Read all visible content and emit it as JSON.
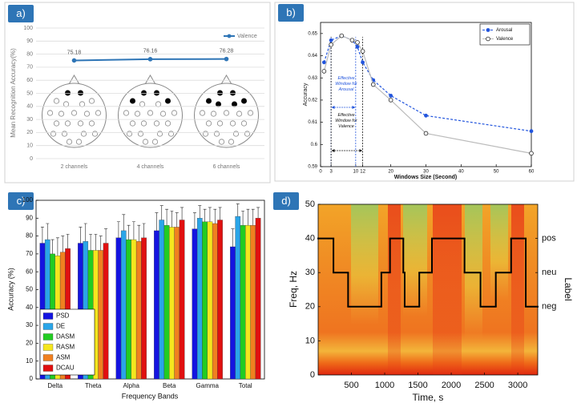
{
  "chart_data": [
    {
      "type": "line",
      "panel_label": "a)",
      "ylabel": "Mean Recognition Accuracy(%)",
      "categories": [
        "2 channels",
        "4 channels",
        "6 channels"
      ],
      "series": [
        {
          "name": "Valence",
          "color": "#2e75b6",
          "values": [
            75.18,
            76.16,
            76.28
          ]
        }
      ],
      "data_labels": true,
      "ylim": [
        0,
        100
      ],
      "yticks": [
        0,
        10,
        20,
        30,
        40,
        50,
        60,
        70,
        80,
        90,
        100
      ],
      "grid": true,
      "legend": "top-right"
    },
    {
      "type": "line",
      "panel_label": "b)",
      "xlabel": "Windows Size (Second)",
      "ylabel": "Accuracy",
      "x": [
        1,
        3,
        6,
        9,
        10.5,
        12,
        15,
        20,
        30,
        60
      ],
      "series": [
        {
          "name": "Arousal",
          "color": "#2255dd",
          "line_color": "#2255dd",
          "line_style": "dashed",
          "marker": "filled",
          "values": [
            0.637,
            0.647,
            0.649,
            0.647,
            0.644,
            0.637,
            0.629,
            0.622,
            0.613,
            0.606
          ]
        },
        {
          "name": "Valence",
          "color": "#222222",
          "line_color": "#bbbbbb",
          "line_style": "solid",
          "marker": "open",
          "values": [
            0.633,
            0.645,
            0.649,
            0.647,
            0.646,
            0.642,
            0.627,
            0.62,
            0.605,
            0.596
          ]
        }
      ],
      "annotations": [
        {
          "text": "Effective Window for Arousal",
          "color": "#2255dd",
          "range": [
            3,
            10
          ]
        },
        {
          "text": "Effective Window for Valence",
          "color": "#111111",
          "range": [
            3,
            12
          ]
        }
      ],
      "xlim": [
        0,
        60
      ],
      "xticks": [
        0,
        3,
        10,
        12,
        20,
        30,
        40,
        50,
        60
      ],
      "ylim": [
        0.59,
        0.655
      ],
      "yticks": [
        0.59,
        0.6,
        0.61,
        0.62,
        0.63,
        0.64,
        0.65
      ],
      "grid": false,
      "legend": "top-right"
    },
    {
      "type": "bar",
      "panel_label": "c)",
      "xlabel": "Frequency Bands",
      "ylabel": "Accuracy (%)",
      "categories": [
        "Delta",
        "Theta",
        "Alpha",
        "Beta",
        "Gamma",
        "Total"
      ],
      "series": [
        {
          "name": "PSD",
          "color": "#1414e0",
          "values": [
            76,
            76,
            79,
            83,
            84,
            74
          ],
          "errors": [
            9,
            9,
            9,
            10,
            9,
            10
          ]
        },
        {
          "name": "DE",
          "color": "#2aa5e8",
          "values": [
            78,
            77,
            83,
            89,
            90,
            91
          ],
          "errors": [
            9,
            10,
            9,
            8,
            7,
            7
          ]
        },
        {
          "name": "DASM",
          "color": "#22cc22",
          "values": [
            70,
            72,
            78,
            86,
            88,
            86
          ],
          "errors": [
            8,
            9,
            8,
            9,
            7,
            8
          ]
        },
        {
          "name": "RASM",
          "color": "#f5e61e",
          "values": [
            69,
            72,
            78,
            85,
            88,
            86
          ],
          "errors": [
            10,
            9,
            10,
            9,
            8,
            9
          ]
        },
        {
          "name": "ASM",
          "color": "#f08020",
          "values": [
            71,
            72,
            77,
            85,
            87,
            86
          ],
          "errors": [
            9,
            8,
            9,
            8,
            8,
            9
          ]
        },
        {
          "name": "DCAU",
          "color": "#e01010",
          "values": [
            73,
            76,
            79,
            89,
            89,
            90
          ],
          "errors": [
            8,
            8,
            8,
            7,
            7,
            6
          ]
        }
      ],
      "ylim": [
        0,
        100
      ],
      "yticks": [
        0,
        10,
        20,
        30,
        40,
        50,
        60,
        70,
        80,
        90,
        100
      ],
      "grid": false,
      "legend": "bottom-left"
    },
    {
      "type": "line",
      "panel_label": "d)",
      "xlabel": "Time, s",
      "ylabel": "Freq, Hz",
      "y2label": "Label",
      "step": true,
      "color": "#000000",
      "x": [
        0,
        230,
        450,
        950,
        1080,
        1280,
        1300,
        1520,
        1710,
        2200,
        2440,
        2670,
        2900,
        3120
      ],
      "values": [
        40,
        30,
        20,
        30,
        40,
        30,
        20,
        30,
        40,
        30,
        20,
        30,
        40,
        20
      ],
      "xlim": [
        0,
        3300
      ],
      "xticks": [
        500,
        1000,
        1500,
        2000,
        2500,
        3000
      ],
      "ylim": [
        0,
        50
      ],
      "yticks": [
        0,
        10,
        20,
        30,
        40,
        50
      ],
      "y2lim": [
        0,
        50
      ],
      "y2ticks": [
        {
          "value": 40,
          "label": "pos"
        },
        {
          "value": 30,
          "label": "neu"
        },
        {
          "value": 20,
          "label": "neg"
        }
      ],
      "grid": false
    }
  ]
}
